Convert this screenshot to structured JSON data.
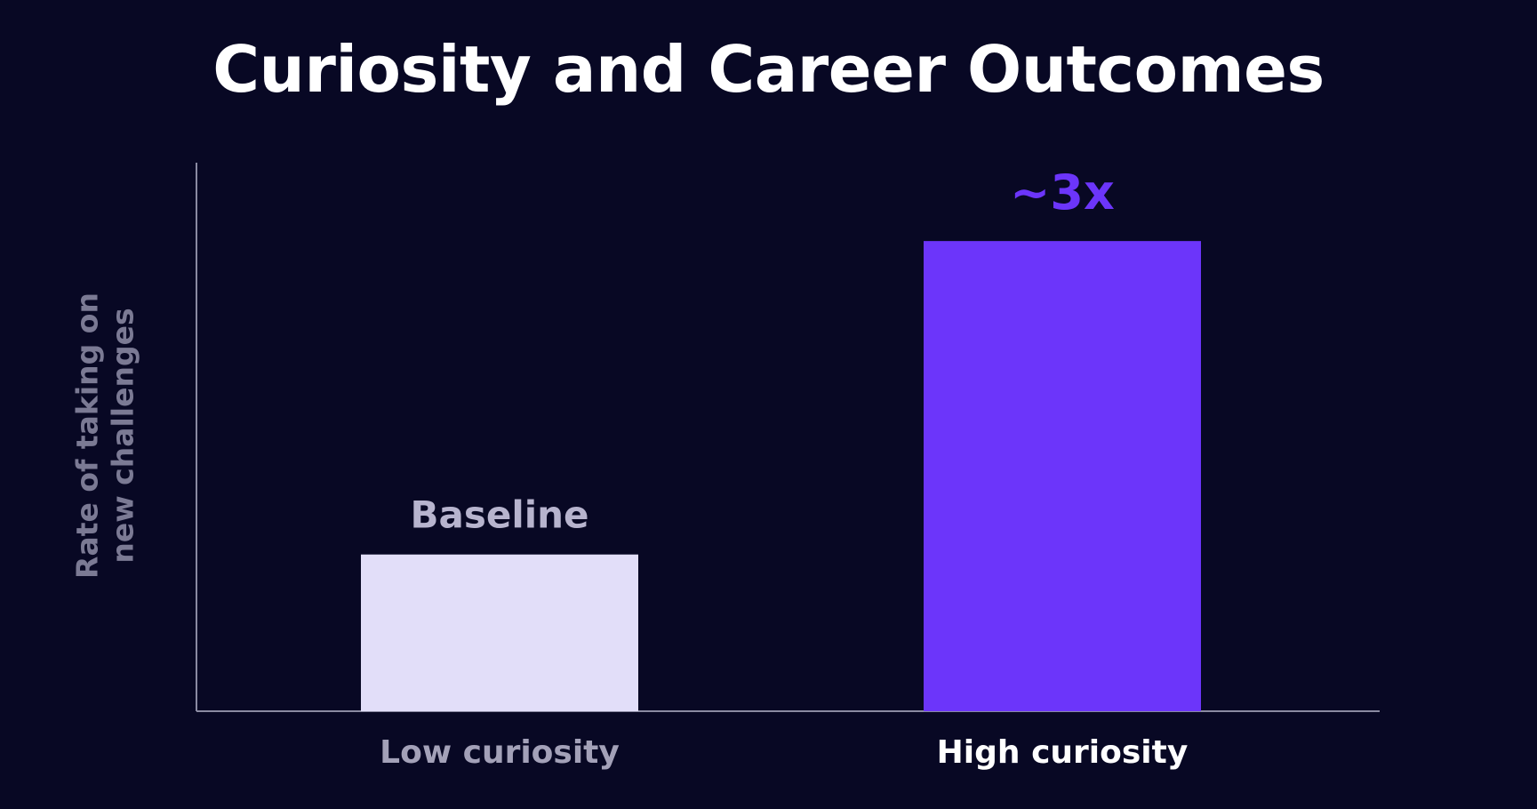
{
  "chart_data": {
    "type": "bar",
    "title": "Curiosity and Career Outcomes",
    "ylabel": "Rate of taking on new challenges",
    "xlabel": "",
    "categories": [
      "Low curiosity",
      "High curiosity"
    ],
    "values": [
      1,
      3
    ],
    "data_labels": [
      "Baseline",
      "~3x"
    ],
    "ylim": [
      0,
      3.5
    ],
    "grid": false,
    "legend": "none",
    "colors": {
      "bar_low": "#e2def9",
      "bar_high": "#6c35fa",
      "label_low": "#b7b4ce",
      "label_high": "#6c35fa",
      "tick_low": "#a3a1b8",
      "tick_high": "#ffffff",
      "axis": "#8a8aa2",
      "background": "#080824"
    }
  }
}
